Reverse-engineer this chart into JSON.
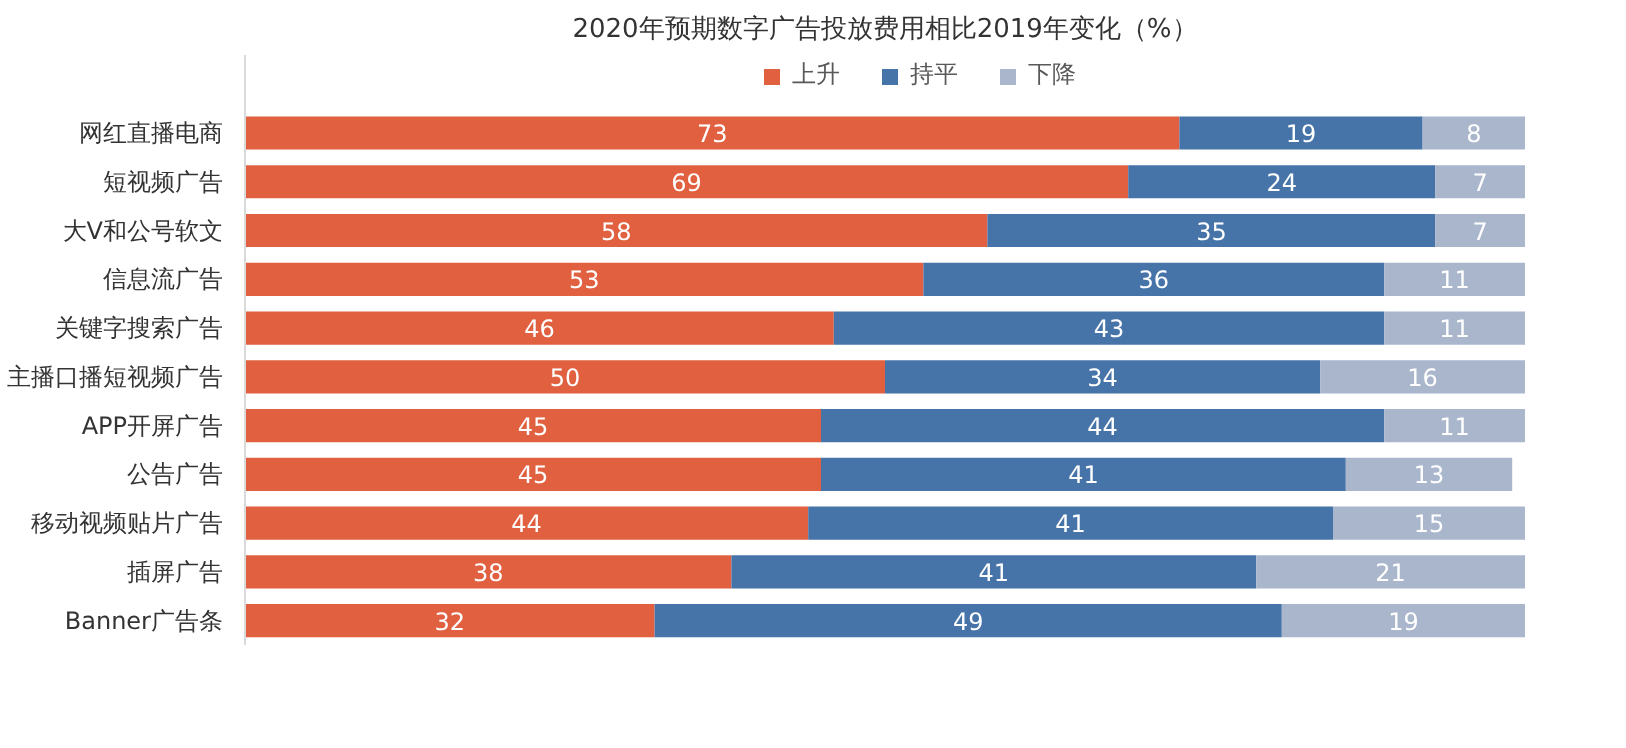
{
  "chart_data": {
    "type": "bar",
    "orientation": "horizontal",
    "stacked": true,
    "title": "2020年预期数字广告投放费用相比2019年变化（%）",
    "categories": [
      "网红直播电商",
      "短视频广告",
      "大V和公号软文",
      "信息流广告",
      "关键字搜索广告",
      "主播口播短视频广告",
      "APP开屏广告",
      "公告广告",
      "移动视频贴片广告",
      "插屏广告",
      "Banner广告条"
    ],
    "series": [
      {
        "name": "上升",
        "color": "#e0603f",
        "values": [
          73,
          69,
          58,
          53,
          46,
          50,
          45,
          45,
          44,
          38,
          32
        ]
      },
      {
        "name": "持平",
        "color": "#4674a9",
        "values": [
          19,
          24,
          35,
          36,
          43,
          34,
          44,
          41,
          41,
          41,
          49
        ]
      },
      {
        "name": "下降",
        "color": "#a9b6cc",
        "values": [
          8,
          7,
          7,
          11,
          11,
          16,
          11,
          13,
          15,
          21,
          19
        ]
      }
    ],
    "xlim": [
      0,
      100
    ],
    "data_labels": true,
    "legend": "top",
    "grid": false,
    "tick_labels": "y"
  }
}
